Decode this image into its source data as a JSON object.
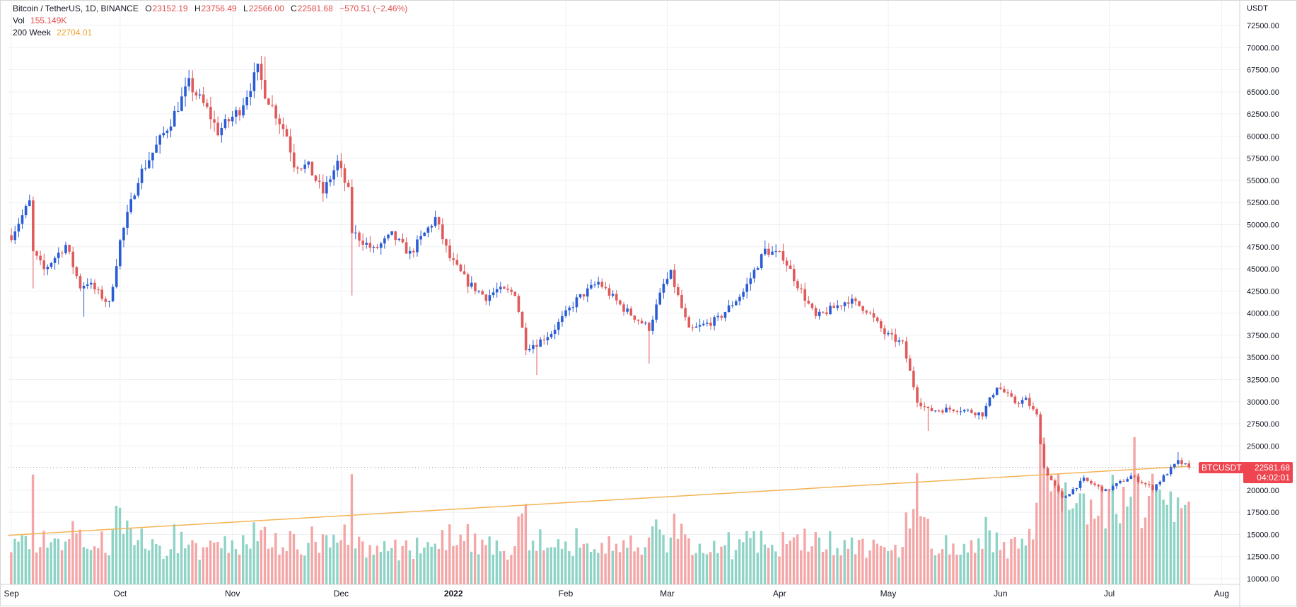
{
  "header": {
    "symbol": "Bitcoin / TetherUS, 1D, BINANCE",
    "open_label": "O",
    "open": "23152.19",
    "high_label": "H",
    "high": "23756.49",
    "low_label": "L",
    "low": "22566.00",
    "close_label": "C",
    "close": "22581.68",
    "change": "−570.51 (−2.46%)",
    "vol_label": "Vol",
    "vol": "155.149K",
    "ma_label": "200 Week",
    "ma": "22704.01"
  },
  "price_axis": {
    "unit": "USDT"
  },
  "last_price": {
    "symbol_tag": "BTCUSDT",
    "price": "22581.68",
    "countdown": "04:02:01"
  },
  "colors": {
    "up": "#2a5cd6",
    "down": "#e05a5a",
    "vol_up": "#8fd3c6",
    "vol_down": "#f4a6a6",
    "ma": "#f4b455",
    "grid": "#eef0f3"
  },
  "chart_data": {
    "type": "candlestick",
    "y_ticks": [
      "72500.00",
      "70000.00",
      "67500.00",
      "65000.00",
      "62500.00",
      "60000.00",
      "57500.00",
      "55000.00",
      "52500.00",
      "50000.00",
      "47500.00",
      "45000.00",
      "42500.00",
      "40000.00",
      "37500.00",
      "35000.00",
      "32500.00",
      "30000.00",
      "27500.00",
      "25000.00",
      "20000.00",
      "17500.00",
      "15000.00",
      "12500.00",
      "10000.00"
    ],
    "ylim": [
      10000,
      74000
    ],
    "x_range": [
      "2021-08-31",
      "2022-08-06"
    ],
    "x_ticks": [
      {
        "label": "Sep",
        "date": "2021-09-01"
      },
      {
        "label": "Oct",
        "date": "2021-10-01"
      },
      {
        "label": "Nov",
        "date": "2021-11-01"
      },
      {
        "label": "Dec",
        "date": "2021-12-01"
      },
      {
        "label": "2022",
        "date": "2022-01-01"
      },
      {
        "label": "Feb",
        "date": "2022-02-01"
      },
      {
        "label": "Mar",
        "date": "2022-03-01"
      },
      {
        "label": "Apr",
        "date": "2022-04-01"
      },
      {
        "label": "May",
        "date": "2022-05-01"
      },
      {
        "label": "Jun",
        "date": "2022-06-01"
      },
      {
        "label": "Jul",
        "date": "2022-07-01"
      },
      {
        "label": "Aug",
        "date": "2022-08-01"
      }
    ],
    "close_anchors": [
      [
        "2021-09-01",
        48800
      ],
      [
        "2021-09-06",
        52500
      ],
      [
        "2021-09-07",
        46800
      ],
      [
        "2021-09-10",
        44900
      ],
      [
        "2021-09-16",
        47700
      ],
      [
        "2021-09-20",
        43000
      ],
      [
        "2021-09-22",
        43500
      ],
      [
        "2021-09-28",
        41000
      ],
      [
        "2021-10-01",
        48100
      ],
      [
        "2021-10-06",
        55300
      ],
      [
        "2021-10-15",
        61700
      ],
      [
        "2021-10-20",
        65900
      ],
      [
        "2021-10-25",
        63000
      ],
      [
        "2021-10-28",
        60500
      ],
      [
        "2021-11-03",
        63000
      ],
      [
        "2021-11-08",
        67500
      ],
      [
        "2021-11-10",
        64900
      ],
      [
        "2021-11-16",
        60100
      ],
      [
        "2021-11-18",
        56900
      ],
      [
        "2021-11-22",
        56500
      ],
      [
        "2021-11-26",
        53600
      ],
      [
        "2021-11-30",
        57000
      ],
      [
        "2021-12-03",
        53700
      ],
      [
        "2021-12-04",
        49200
      ],
      [
        "2021-12-10",
        47100
      ],
      [
        "2021-12-15",
        48800
      ],
      [
        "2021-12-20",
        46700
      ],
      [
        "2021-12-27",
        50700
      ],
      [
        "2021-12-31",
        46200
      ],
      [
        "2022-01-05",
        43400
      ],
      [
        "2022-01-10",
        41800
      ],
      [
        "2022-01-13",
        42600
      ],
      [
        "2022-01-18",
        42300
      ],
      [
        "2022-01-21",
        36200
      ],
      [
        "2022-01-24",
        36600
      ],
      [
        "2022-01-28",
        37800
      ],
      [
        "2022-02-04",
        41500
      ],
      [
        "2022-02-10",
        43500
      ],
      [
        "2022-02-13",
        42200
      ],
      [
        "2022-02-17",
        40500
      ],
      [
        "2022-02-24",
        38300
      ],
      [
        "2022-02-28",
        43200
      ],
      [
        "2022-03-02",
        44400
      ],
      [
        "2022-03-07",
        38000
      ],
      [
        "2022-03-15",
        39300
      ],
      [
        "2022-03-22",
        42400
      ],
      [
        "2022-03-28",
        47100
      ],
      [
        "2022-04-02",
        46400
      ],
      [
        "2022-04-06",
        43200
      ],
      [
        "2022-04-11",
        39500
      ],
      [
        "2022-04-20",
        41500
      ],
      [
        "2022-04-25",
        40400
      ],
      [
        "2022-04-30",
        37700
      ],
      [
        "2022-05-05",
        36500
      ],
      [
        "2022-05-09",
        30200
      ],
      [
        "2022-05-12",
        29000
      ],
      [
        "2022-05-20",
        29200
      ],
      [
        "2022-05-27",
        28600
      ],
      [
        "2022-05-31",
        31800
      ],
      [
        "2022-06-05",
        29900
      ],
      [
        "2022-06-08",
        30200
      ],
      [
        "2022-06-11",
        28400
      ],
      [
        "2022-06-13",
        22500
      ],
      [
        "2022-06-18",
        19000
      ],
      [
        "2022-06-24",
        21200
      ],
      [
        "2022-06-30",
        19900
      ],
      [
        "2022-07-07",
        21600
      ],
      [
        "2022-07-13",
        20200
      ],
      [
        "2022-07-18",
        22400
      ],
      [
        "2022-07-20",
        23200
      ],
      [
        "2022-07-23",
        22600
      ]
    ],
    "spikes": [
      {
        "date": "2021-09-07",
        "low": 42800
      },
      {
        "date": "2021-09-21",
        "low": 39600
      },
      {
        "date": "2021-11-10",
        "high": 69000
      },
      {
        "date": "2021-12-04",
        "low": 42000
      },
      {
        "date": "2022-01-24",
        "low": 33000
      },
      {
        "date": "2022-02-24",
        "low": 34300
      },
      {
        "date": "2022-03-28",
        "high": 48200
      },
      {
        "date": "2022-05-12",
        "low": 26700
      },
      {
        "date": "2022-06-18",
        "low": 17600
      },
      {
        "date": "2022-07-20",
        "high": 24300
      }
    ],
    "ma_200w": {
      "label": "200 Week",
      "points": [
        [
          "2021-08-31",
          14900
        ],
        [
          "2022-07-23",
          22704
        ]
      ]
    },
    "volume": {
      "base": 10000
    },
    "last": 22581.68
  }
}
